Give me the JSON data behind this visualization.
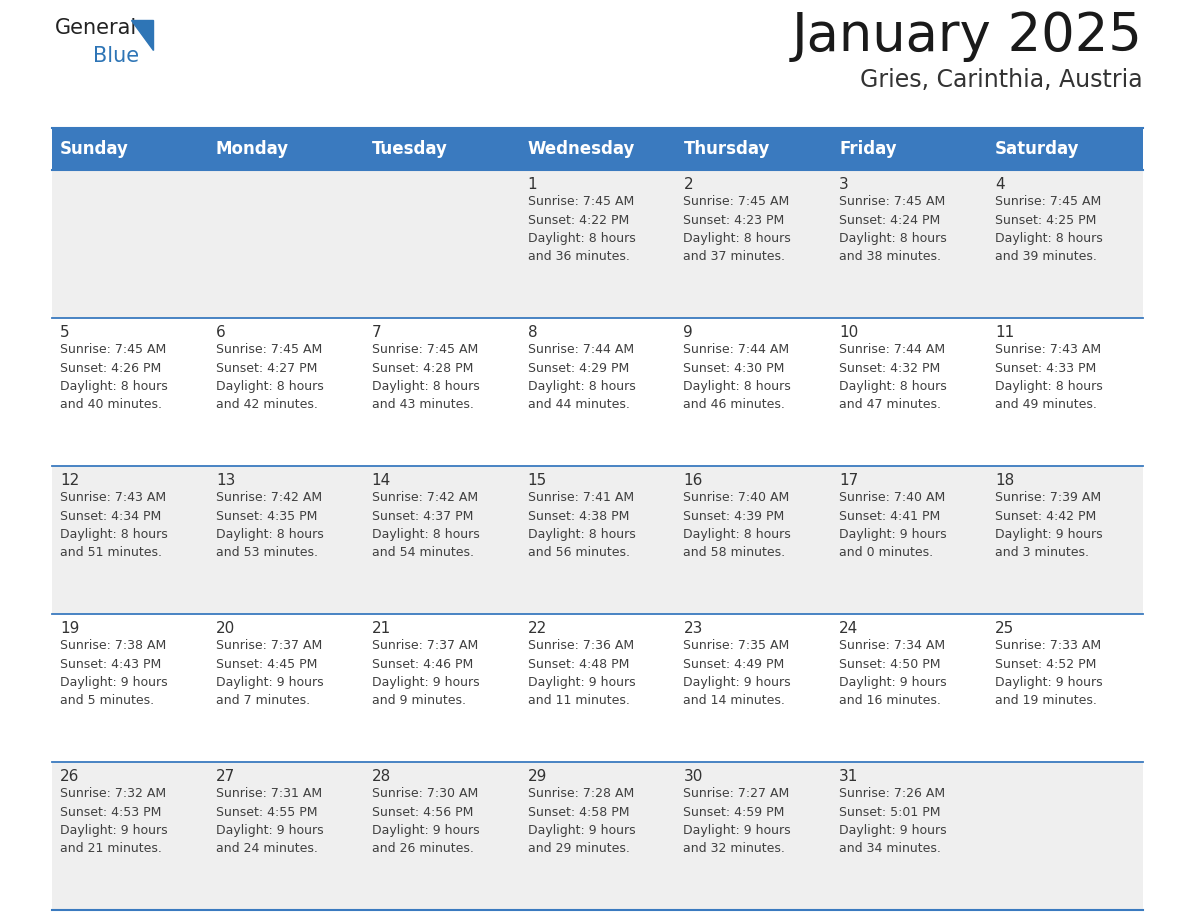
{
  "title": "January 2025",
  "subtitle": "Gries, Carinthia, Austria",
  "header_bg": "#3A7ABF",
  "header_text_color": "#FFFFFF",
  "row_bg_light": "#EFEFEF",
  "row_bg_white": "#FFFFFF",
  "cell_text_color": "#404040",
  "day_number_color": "#333333",
  "separator_color": "#3A7ABF",
  "days_of_week": [
    "Sunday",
    "Monday",
    "Tuesday",
    "Wednesday",
    "Thursday",
    "Friday",
    "Saturday"
  ],
  "weeks": [
    [
      {
        "day": "",
        "info": ""
      },
      {
        "day": "",
        "info": ""
      },
      {
        "day": "",
        "info": ""
      },
      {
        "day": "1",
        "info": "Sunrise: 7:45 AM\nSunset: 4:22 PM\nDaylight: 8 hours\nand 36 minutes."
      },
      {
        "day": "2",
        "info": "Sunrise: 7:45 AM\nSunset: 4:23 PM\nDaylight: 8 hours\nand 37 minutes."
      },
      {
        "day": "3",
        "info": "Sunrise: 7:45 AM\nSunset: 4:24 PM\nDaylight: 8 hours\nand 38 minutes."
      },
      {
        "day": "4",
        "info": "Sunrise: 7:45 AM\nSunset: 4:25 PM\nDaylight: 8 hours\nand 39 minutes."
      }
    ],
    [
      {
        "day": "5",
        "info": "Sunrise: 7:45 AM\nSunset: 4:26 PM\nDaylight: 8 hours\nand 40 minutes."
      },
      {
        "day": "6",
        "info": "Sunrise: 7:45 AM\nSunset: 4:27 PM\nDaylight: 8 hours\nand 42 minutes."
      },
      {
        "day": "7",
        "info": "Sunrise: 7:45 AM\nSunset: 4:28 PM\nDaylight: 8 hours\nand 43 minutes."
      },
      {
        "day": "8",
        "info": "Sunrise: 7:44 AM\nSunset: 4:29 PM\nDaylight: 8 hours\nand 44 minutes."
      },
      {
        "day": "9",
        "info": "Sunrise: 7:44 AM\nSunset: 4:30 PM\nDaylight: 8 hours\nand 46 minutes."
      },
      {
        "day": "10",
        "info": "Sunrise: 7:44 AM\nSunset: 4:32 PM\nDaylight: 8 hours\nand 47 minutes."
      },
      {
        "day": "11",
        "info": "Sunrise: 7:43 AM\nSunset: 4:33 PM\nDaylight: 8 hours\nand 49 minutes."
      }
    ],
    [
      {
        "day": "12",
        "info": "Sunrise: 7:43 AM\nSunset: 4:34 PM\nDaylight: 8 hours\nand 51 minutes."
      },
      {
        "day": "13",
        "info": "Sunrise: 7:42 AM\nSunset: 4:35 PM\nDaylight: 8 hours\nand 53 minutes."
      },
      {
        "day": "14",
        "info": "Sunrise: 7:42 AM\nSunset: 4:37 PM\nDaylight: 8 hours\nand 54 minutes."
      },
      {
        "day": "15",
        "info": "Sunrise: 7:41 AM\nSunset: 4:38 PM\nDaylight: 8 hours\nand 56 minutes."
      },
      {
        "day": "16",
        "info": "Sunrise: 7:40 AM\nSunset: 4:39 PM\nDaylight: 8 hours\nand 58 minutes."
      },
      {
        "day": "17",
        "info": "Sunrise: 7:40 AM\nSunset: 4:41 PM\nDaylight: 9 hours\nand 0 minutes."
      },
      {
        "day": "18",
        "info": "Sunrise: 7:39 AM\nSunset: 4:42 PM\nDaylight: 9 hours\nand 3 minutes."
      }
    ],
    [
      {
        "day": "19",
        "info": "Sunrise: 7:38 AM\nSunset: 4:43 PM\nDaylight: 9 hours\nand 5 minutes."
      },
      {
        "day": "20",
        "info": "Sunrise: 7:37 AM\nSunset: 4:45 PM\nDaylight: 9 hours\nand 7 minutes."
      },
      {
        "day": "21",
        "info": "Sunrise: 7:37 AM\nSunset: 4:46 PM\nDaylight: 9 hours\nand 9 minutes."
      },
      {
        "day": "22",
        "info": "Sunrise: 7:36 AM\nSunset: 4:48 PM\nDaylight: 9 hours\nand 11 minutes."
      },
      {
        "day": "23",
        "info": "Sunrise: 7:35 AM\nSunset: 4:49 PM\nDaylight: 9 hours\nand 14 minutes."
      },
      {
        "day": "24",
        "info": "Sunrise: 7:34 AM\nSunset: 4:50 PM\nDaylight: 9 hours\nand 16 minutes."
      },
      {
        "day": "25",
        "info": "Sunrise: 7:33 AM\nSunset: 4:52 PM\nDaylight: 9 hours\nand 19 minutes."
      }
    ],
    [
      {
        "day": "26",
        "info": "Sunrise: 7:32 AM\nSunset: 4:53 PM\nDaylight: 9 hours\nand 21 minutes."
      },
      {
        "day": "27",
        "info": "Sunrise: 7:31 AM\nSunset: 4:55 PM\nDaylight: 9 hours\nand 24 minutes."
      },
      {
        "day": "28",
        "info": "Sunrise: 7:30 AM\nSunset: 4:56 PM\nDaylight: 9 hours\nand 26 minutes."
      },
      {
        "day": "29",
        "info": "Sunrise: 7:28 AM\nSunset: 4:58 PM\nDaylight: 9 hours\nand 29 minutes."
      },
      {
        "day": "30",
        "info": "Sunrise: 7:27 AM\nSunset: 4:59 PM\nDaylight: 9 hours\nand 32 minutes."
      },
      {
        "day": "31",
        "info": "Sunrise: 7:26 AM\nSunset: 5:01 PM\nDaylight: 9 hours\nand 34 minutes."
      },
      {
        "day": "",
        "info": ""
      }
    ]
  ],
  "logo_general_color": "#222222",
  "logo_blue_color": "#2E75B6",
  "title_fontsize": 38,
  "subtitle_fontsize": 17,
  "header_fontsize": 12,
  "day_number_fontsize": 11,
  "cell_info_fontsize": 9.0,
  "figwidth": 11.88,
  "figheight": 9.18,
  "dpi": 100
}
